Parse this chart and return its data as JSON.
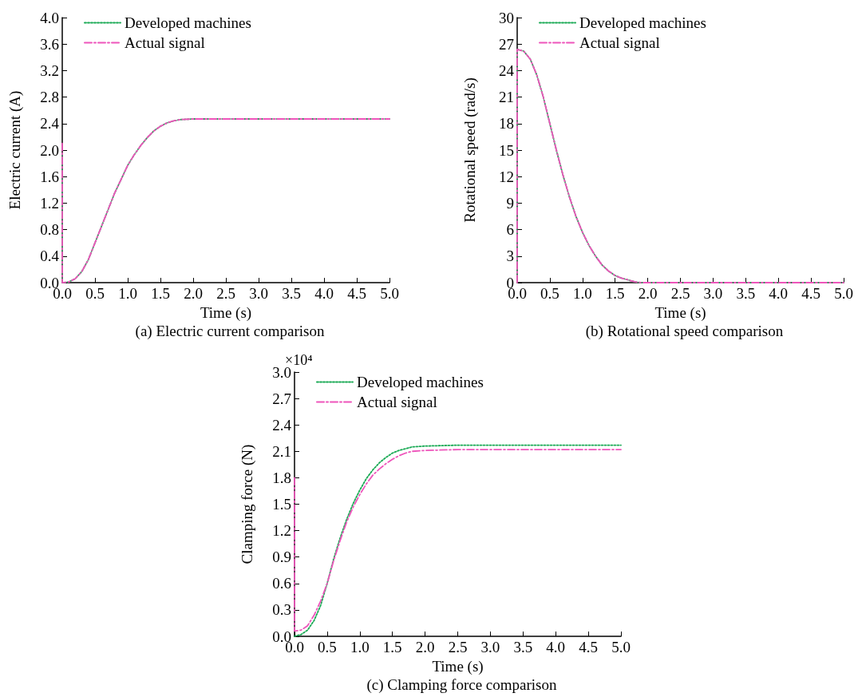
{
  "chart_data": [
    {
      "type": "line",
      "title": "(a) Electric current comparison",
      "xlabel": "Time (s)",
      "ylabel": "Electric current (A)",
      "legend": "top left",
      "grid": false,
      "xlim": [
        0,
        5
      ],
      "xticks": [
        {
          "value": 0,
          "label": "0.0"
        },
        {
          "value": 0.5,
          "label": "0.5"
        },
        {
          "value": 1,
          "label": "1.0"
        },
        {
          "value": 1.5,
          "label": "1.5"
        },
        {
          "value": 2,
          "label": "2.0"
        },
        {
          "value": 2.5,
          "label": "2.5"
        },
        {
          "value": 3,
          "label": "3.0"
        },
        {
          "value": 3.5,
          "label": "3.5"
        },
        {
          "value": 4,
          "label": "4.0"
        },
        {
          "value": 4.5,
          "label": "4.5"
        },
        {
          "value": 5,
          "label": "5.0"
        }
      ],
      "ylim": [
        0,
        4
      ],
      "yticks": [
        {
          "value": 0,
          "label": "0.0"
        },
        0.4,
        0.8,
        1.2,
        1.6,
        {
          "value": 2,
          "label": "2.0"
        },
        2.4,
        2.8,
        3.2,
        3.6,
        {
          "value": 4,
          "label": "4.0"
        }
      ],
      "series": [
        {
          "name": "Developed machines",
          "color": "#1aaa55",
          "line_style": "dotted",
          "x": [
            0,
            0,
            0.1,
            0.2,
            0.3,
            0.4,
            0.5,
            0.6,
            0.7,
            0.8,
            0.9,
            1.0,
            1.1,
            1.2,
            1.3,
            1.4,
            1.5,
            1.6,
            1.7,
            1.8,
            2.0,
            2.5,
            5.0
          ],
          "values": [
            1.95,
            0,
            0.01,
            0.06,
            0.17,
            0.35,
            0.6,
            0.85,
            1.1,
            1.35,
            1.56,
            1.77,
            1.93,
            2.07,
            2.19,
            2.29,
            2.36,
            2.41,
            2.44,
            2.46,
            2.47,
            2.47,
            2.47
          ]
        },
        {
          "name": "Actual signal",
          "color": "#ee55bb",
          "line_style": "dashed",
          "x": [
            0,
            0,
            0.1,
            0.2,
            0.3,
            0.4,
            0.5,
            0.6,
            0.7,
            0.8,
            0.9,
            1.0,
            1.1,
            1.2,
            1.3,
            1.4,
            1.5,
            1.6,
            1.7,
            1.8,
            2.0,
            2.5,
            5.0
          ],
          "values": [
            2.1,
            0,
            0.01,
            0.06,
            0.17,
            0.35,
            0.6,
            0.85,
            1.1,
            1.35,
            1.56,
            1.77,
            1.93,
            2.07,
            2.19,
            2.29,
            2.36,
            2.41,
            2.44,
            2.46,
            2.47,
            2.47,
            2.47
          ]
        }
      ]
    },
    {
      "type": "line",
      "title": "(b) Rotational speed comparison",
      "xlabel": "Time (s)",
      "ylabel": "Rotational speed (rad/s)",
      "legend": "top left",
      "grid": false,
      "xlim": [
        0,
        5
      ],
      "xticks": [
        {
          "value": 0,
          "label": "0.0"
        },
        {
          "value": 0.5,
          "label": "0.5"
        },
        {
          "value": 1,
          "label": "1.0"
        },
        {
          "value": 1.5,
          "label": "1.5"
        },
        {
          "value": 2,
          "label": "2.0"
        },
        {
          "value": 2.5,
          "label": "2.5"
        },
        {
          "value": 3,
          "label": "3.0"
        },
        {
          "value": 3.5,
          "label": "3.5"
        },
        {
          "value": 4,
          "label": "4.0"
        },
        {
          "value": 4.5,
          "label": "4.5"
        },
        {
          "value": 5,
          "label": "5.0"
        }
      ],
      "ylim": [
        0,
        30
      ],
      "yticks": [
        0,
        3,
        6,
        9,
        12,
        15,
        18,
        21,
        24,
        27,
        30
      ],
      "series": [
        {
          "name": "Developed machines",
          "color": "#1aaa55",
          "line_style": "dotted",
          "x": [
            0,
            0,
            0.1,
            0.2,
            0.3,
            0.4,
            0.5,
            0.6,
            0.7,
            0.8,
            0.9,
            1.0,
            1.1,
            1.2,
            1.3,
            1.4,
            1.5,
            1.6,
            1.7,
            1.8,
            1.9,
            2.0,
            5.0
          ],
          "values": [
            0,
            26.4,
            26.2,
            25.3,
            23.5,
            21.0,
            18.0,
            15.0,
            12.2,
            9.7,
            7.5,
            5.7,
            4.2,
            3.0,
            2.0,
            1.3,
            0.8,
            0.5,
            0.3,
            0.1,
            0,
            0,
            0
          ]
        },
        {
          "name": "Actual signal",
          "color": "#ee55bb",
          "line_style": "dashed",
          "x": [
            0,
            0,
            0.1,
            0.2,
            0.3,
            0.4,
            0.5,
            0.6,
            0.7,
            0.8,
            0.9,
            1.0,
            1.1,
            1.2,
            1.3,
            1.4,
            1.5,
            1.6,
            1.7,
            1.8,
            1.9,
            2.0,
            5.0
          ],
          "values": [
            0,
            26.4,
            26.2,
            25.3,
            23.5,
            21.0,
            18.0,
            15.0,
            12.2,
            9.7,
            7.5,
            5.7,
            4.2,
            3.0,
            2.0,
            1.3,
            0.8,
            0.5,
            0.3,
            0.1,
            0,
            0,
            0
          ]
        }
      ]
    },
    {
      "type": "line",
      "title": "(c) Clamping force comparison",
      "xlabel": "Time (s)",
      "ylabel": "Clamping force (N)",
      "legend": "top left",
      "grid": false,
      "annotations": [
        "×10⁴"
      ],
      "xlim": [
        0,
        5
      ],
      "xticks": [
        {
          "value": 0,
          "label": "0.0"
        },
        {
          "value": 0.5,
          "label": "0.5"
        },
        {
          "value": 1,
          "label": "1.0"
        },
        {
          "value": 1.5,
          "label": "1.5"
        },
        {
          "value": 2,
          "label": "2.0"
        },
        {
          "value": 2.5,
          "label": "2.5"
        },
        {
          "value": 3,
          "label": "3.0"
        },
        {
          "value": 3.5,
          "label": "3.5"
        },
        {
          "value": 4,
          "label": "4.0"
        },
        {
          "value": 4.5,
          "label": "4.5"
        },
        {
          "value": 5,
          "label": "5.0"
        }
      ],
      "ylim": [
        0,
        3
      ],
      "yticks": [
        {
          "value": 0,
          "label": "0.0"
        },
        0.3,
        0.6,
        0.9,
        1.2,
        1.5,
        1.8,
        2.1,
        2.4,
        2.7,
        {
          "value": 3,
          "label": "3.0"
        }
      ],
      "series": [
        {
          "name": "Developed machines",
          "color": "#1aaa55",
          "line_style": "dotted",
          "x": [
            0,
            0.1,
            0.2,
            0.3,
            0.4,
            0.5,
            0.6,
            0.7,
            0.8,
            0.9,
            1.0,
            1.1,
            1.2,
            1.3,
            1.4,
            1.5,
            1.6,
            1.7,
            1.8,
            2.0,
            2.5,
            5.0
          ],
          "values": [
            0,
            0.02,
            0.07,
            0.18,
            0.35,
            0.6,
            0.88,
            1.12,
            1.33,
            1.51,
            1.66,
            1.79,
            1.89,
            1.97,
            2.03,
            2.08,
            2.11,
            2.13,
            2.15,
            2.16,
            2.17,
            2.17
          ]
        },
        {
          "name": "Actual signal",
          "color": "#ee55bb",
          "line_style": "dashed",
          "x": [
            0,
            0,
            0.1,
            0.2,
            0.3,
            0.4,
            0.5,
            0.6,
            0.7,
            0.8,
            0.9,
            1.0,
            1.1,
            1.2,
            1.3,
            1.4,
            1.5,
            1.6,
            1.7,
            1.8,
            2.0,
            2.5,
            5.0
          ],
          "values": [
            1.8,
            0.06,
            0.07,
            0.12,
            0.24,
            0.4,
            0.6,
            0.86,
            1.09,
            1.3,
            1.47,
            1.61,
            1.73,
            1.83,
            1.9,
            1.96,
            2.01,
            2.05,
            2.08,
            2.1,
            2.11,
            2.12,
            2.12
          ]
        }
      ]
    }
  ]
}
